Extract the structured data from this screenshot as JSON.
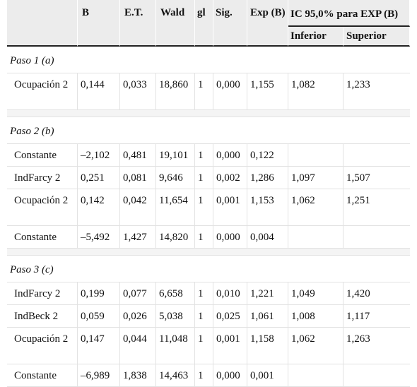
{
  "headers": {
    "b": "B",
    "et": "E.T.",
    "wald": "Wald",
    "gl": "gl",
    "sig": "Sig.",
    "expb": "Exp (B)",
    "ic": "IC 95,0% para EXP (B)",
    "inferior": "Inferior",
    "superior": "Superior"
  },
  "sections": [
    {
      "label": "Paso 1 (a)",
      "rows": [
        {
          "label": "Ocupación 2",
          "b": "0,144",
          "et": "0,033",
          "wald": "18,860",
          "gl": "1",
          "sig": "0,000",
          "expb": "1,155",
          "inf": "1,082",
          "sup": "1,233"
        }
      ]
    },
    {
      "label": "Paso 2 (b)",
      "rows": [
        {
          "label": "Constante",
          "b": "–2,102",
          "et": "0,481",
          "wald": "19,101",
          "gl": "1",
          "sig": "0,000",
          "expb": "0,122",
          "inf": "",
          "sup": ""
        },
        {
          "label": "IndFarcy 2",
          "b": "0,251",
          "et": "0,081",
          "wald": "9,646",
          "gl": "1",
          "sig": "0,002",
          "expb": "1,286",
          "inf": "1,097",
          "sup": "1,507"
        },
        {
          "label": "Ocupación 2",
          "b": "0,142",
          "et": "0,042",
          "wald": "11,654",
          "gl": "1",
          "sig": "0,001",
          "expb": "1,153",
          "inf": "1,062",
          "sup": "1,251"
        },
        {
          "label": "Constante",
          "b": "–5,492",
          "et": "1,427",
          "wald": "14,820",
          "gl": "1",
          "sig": "0,000",
          "expb": "0,004",
          "inf": "",
          "sup": ""
        }
      ]
    },
    {
      "label": "Paso 3 (c)",
      "rows": [
        {
          "label": "IndFarcy 2",
          "b": "0,199",
          "et": "0,077",
          "wald": "6,658",
          "gl": "1",
          "sig": "0,010",
          "expb": "1,221",
          "inf": "1,049",
          "sup": "1,420"
        },
        {
          "label": "IndBeck 2",
          "b": "0,059",
          "et": "0,026",
          "wald": "5,038",
          "gl": "1",
          "sig": "0,025",
          "expb": "1,061",
          "inf": "1,008",
          "sup": "1,117"
        },
        {
          "label": "Ocupación 2",
          "b": "0,147",
          "et": "0,044",
          "wald": "11,048",
          "gl": "1",
          "sig": "0,001",
          "expb": "1,158",
          "inf": "1,062",
          "sup": "1,263"
        },
        {
          "label": "Constante",
          "b": "–6,989",
          "et": "1,838",
          "wald": "14,463",
          "gl": "1",
          "sig": "0,000",
          "expb": "0,001",
          "inf": "",
          "sup": ""
        }
      ]
    }
  ]
}
